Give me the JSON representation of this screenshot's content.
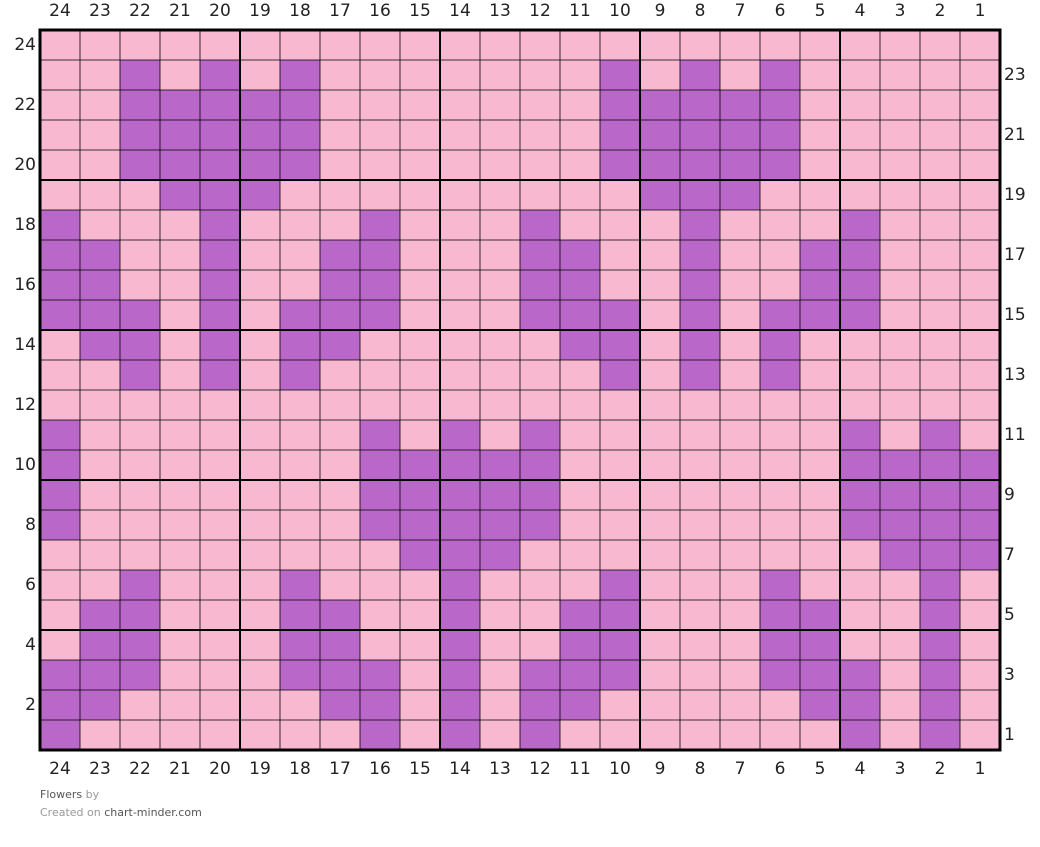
{
  "columns": [
    24,
    23,
    22,
    21,
    20,
    19,
    18,
    17,
    16,
    15,
    14,
    13,
    12,
    11,
    10,
    9,
    8,
    7,
    6,
    5,
    4,
    3,
    2,
    1
  ],
  "rows": [
    24,
    23,
    22,
    21,
    20,
    19,
    18,
    17,
    16,
    15,
    14,
    13,
    12,
    11,
    10,
    9,
    8,
    7,
    6,
    5,
    4,
    3,
    2,
    1
  ],
  "grid": [
    "000000000000000000000000",
    "001010100000001010100000",
    "001111100000001111100000",
    "001111100000001111100000",
    "001111100000001111100000",
    "000111000000000111000000",
    "100010001000100010001000",
    "110010011000110010011000",
    "110010011000110010011000",
    "111010111000111010111000",
    "011010110000011010100000",
    "001010100000001010100000",
    "000000000000000000000000",
    "100000001010100000001010",
    "100000001111100000001111",
    "100000001111100000001111",
    "100000001111100000001111",
    "000000000111000000000111",
    "001000100010001000100010",
    "011000110010011000110010",
    "011000110010011000110010",
    "111000111010111000111010",
    "110000011010110000011010",
    "100000001010100000001010"
  ],
  "footer": {
    "title": "Flowers",
    "by": "by",
    "created_on": "Created on",
    "site": "chart-minder.com"
  }
}
